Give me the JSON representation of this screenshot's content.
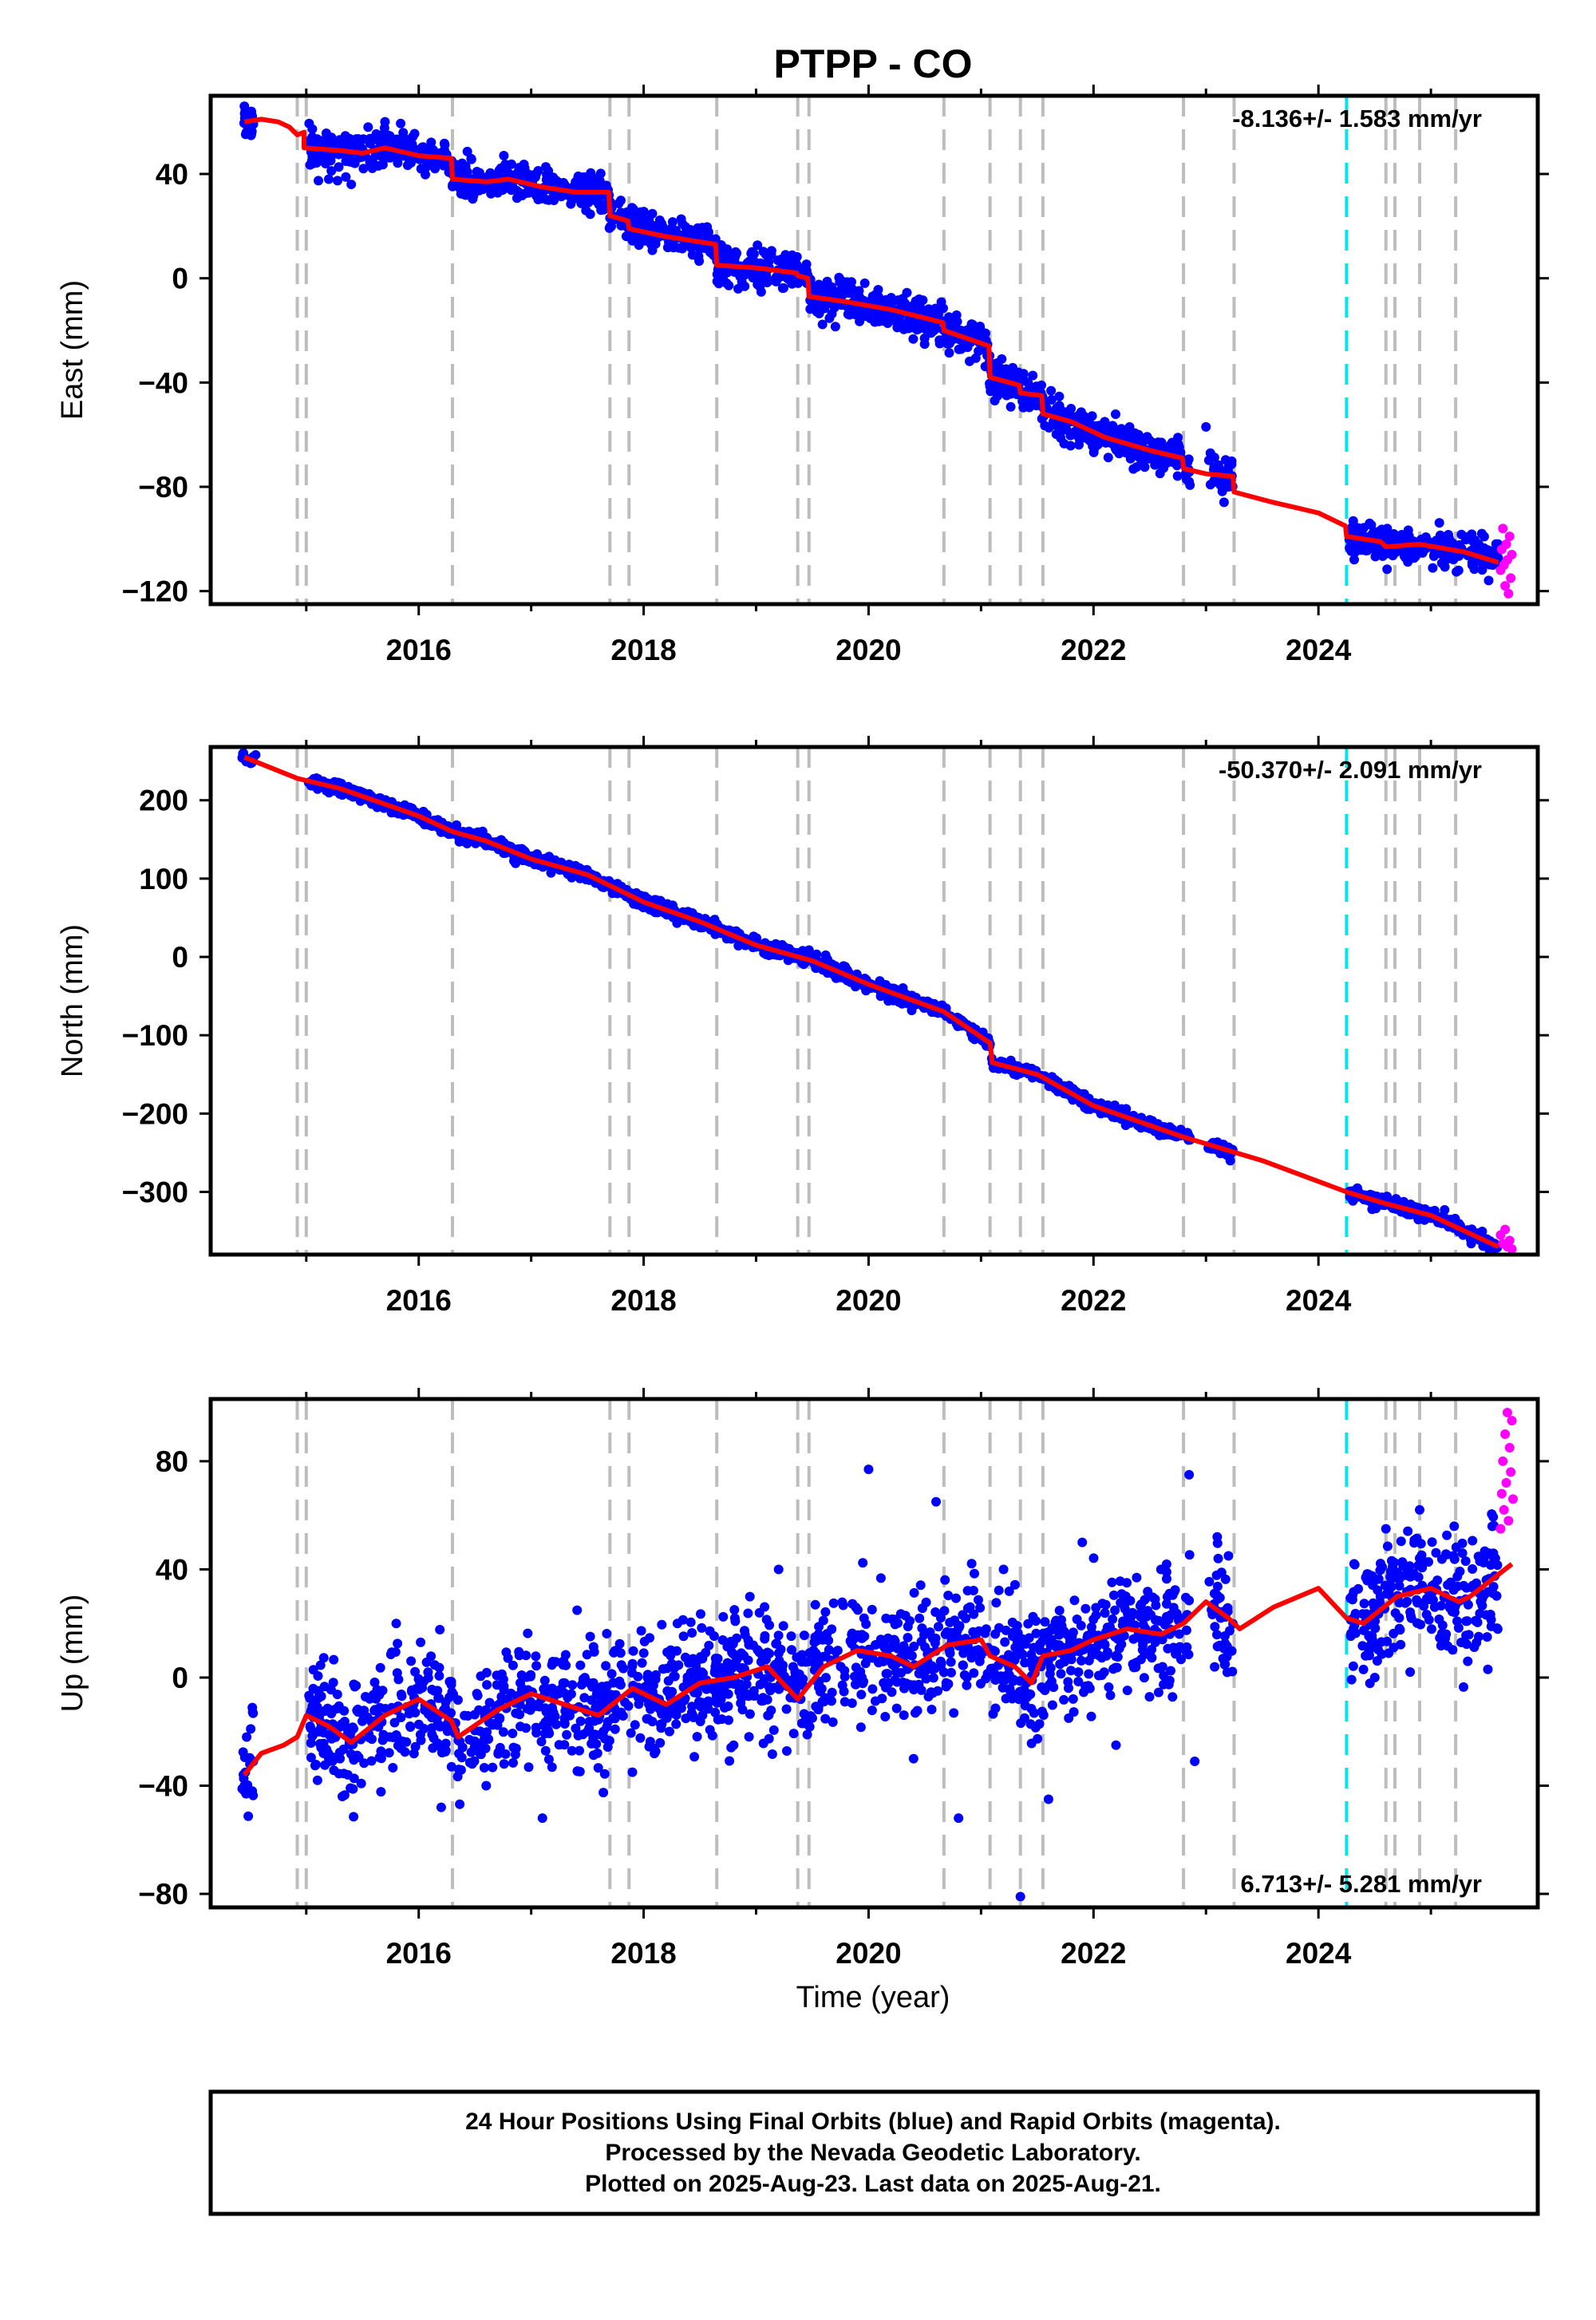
{
  "title": "PTPP - CO",
  "colors": {
    "final_orbits": "#0000ff",
    "rapid_orbits": "#ff00ff",
    "model": "#ff0000",
    "event_lines": "#bdbdbd",
    "equipment_change": "#00e5ee"
  },
  "xaxis": {
    "label": "Time (year)",
    "range": [
      2014.15,
      2025.95
    ],
    "ticks": [
      2016,
      2018,
      2020,
      2022,
      2024
    ],
    "minor_ticks": [
      2015,
      2017,
      2019,
      2021,
      2023,
      2025
    ]
  },
  "event_lines": [
    2014.92,
    2015.0,
    2016.3,
    2017.7,
    2017.87,
    2018.65,
    2019.37,
    2019.47,
    2020.67,
    2021.08,
    2021.35,
    2021.55,
    2022.8,
    2023.25,
    2024.6,
    2024.68,
    2024.9,
    2025.22
  ],
  "equipment_change": 2024.25,
  "chart_data": [
    {
      "type": "scatter",
      "component": "East",
      "ylabel": "East (mm)",
      "ylim": [
        -125,
        70
      ],
      "yticks": [
        -120,
        -80,
        -40,
        0,
        40
      ],
      "rate": "-8.136+/- 1.583 mm/yr",
      "scatter_sd": 3.5,
      "model_x": [
        2014.45,
        2014.6,
        2014.75,
        2014.85,
        2014.92,
        2014.98,
        2014.98,
        2015.3,
        2015.5,
        2015.7,
        2016.0,
        2016.29,
        2016.3,
        2016.6,
        2016.8,
        2017.1,
        2017.4,
        2017.69,
        2017.7,
        2017.86,
        2017.87,
        2018.2,
        2018.64,
        2018.65,
        2019.0,
        2019.36,
        2019.37,
        2019.46,
        2019.47,
        2019.8,
        2020.2,
        2020.66,
        2020.67,
        2021.07,
        2021.08,
        2021.34,
        2021.35,
        2021.54,
        2021.55,
        2021.8,
        2022.1,
        2022.5,
        2022.79,
        2022.8,
        2023.0,
        2023.24,
        2023.25,
        2023.6,
        2023.8,
        2024.0,
        2024.24,
        2024.25,
        2024.55,
        2024.6,
        2024.9,
        2025.3,
        2025.6
      ],
      "model_y": [
        60,
        61,
        60,
        58,
        55,
        56,
        50,
        49,
        48,
        50,
        47,
        46,
        38,
        37,
        38,
        35,
        33,
        33,
        24,
        22,
        19,
        16,
        13,
        5,
        4,
        2,
        1,
        0,
        -7,
        -9,
        -12,
        -17,
        -20,
        -26,
        -38,
        -41,
        -44,
        -45,
        -52,
        -55,
        -61,
        -66,
        -69,
        -73,
        -75,
        -76,
        -82,
        -86,
        -88,
        -90,
        -95,
        -99,
        -101,
        -103,
        -102,
        -105,
        -109
      ],
      "points_x": [
        2014.45,
        2014.5,
        2014.52,
        2015.05,
        2015.2,
        2015.4,
        2015.55,
        2015.7,
        2015.9,
        2016.1,
        2016.4,
        2016.8,
        2017.2,
        2017.6,
        2017.9,
        2018.3,
        2018.7,
        2019.0,
        2019.3,
        2019.6,
        2020.0,
        2020.4,
        2020.7,
        2020.9,
        2021.2,
        2021.5,
        2021.8,
        2022.1,
        2022.4,
        2022.7,
        2022.85,
        2023.0,
        2023.2,
        2024.3,
        2024.5,
        2024.8,
        2025.1,
        2025.4,
        2025.55
      ],
      "points_y": [
        66,
        57,
        62,
        45,
        38,
        36,
        58,
        60,
        52,
        48,
        40,
        37,
        35,
        31,
        22,
        17,
        12,
        6,
        2,
        -3,
        -11,
        -14,
        -18,
        -23,
        -36,
        -43,
        -50,
        -55,
        -60,
        -63,
        -78,
        -57,
        -80,
        -104,
        -102,
        -104,
        -106,
        -107,
        -110
      ],
      "rapid_x": [
        2025.62,
        2025.63,
        2025.64,
        2025.65,
        2025.66,
        2025.67,
        2025.68,
        2025.69,
        2025.7,
        2025.71,
        2025.72
      ],
      "rapid_y": [
        -112,
        -104,
        -96,
        -110,
        -118,
        -102,
        -108,
        -121,
        -99,
        -115,
        -106
      ]
    },
    {
      "type": "scatter",
      "component": "North",
      "ylabel": "North (mm)",
      "ylim": [
        -380,
        268
      ],
      "yticks": [
        -300,
        -200,
        -100,
        0,
        100,
        200
      ],
      "rate": "-50.370+/- 2.091 mm/yr",
      "scatter_sd": 4,
      "model_x": [
        2014.45,
        2014.92,
        2015.3,
        2016.0,
        2016.3,
        2016.6,
        2017.0,
        2017.5,
        2018.0,
        2018.5,
        2019.0,
        2019.5,
        2020.0,
        2020.67,
        2021.08,
        2021.1,
        2021.5,
        2022.0,
        2022.8,
        2023.5,
        2024.25,
        2024.6,
        2025.0,
        2025.6
      ],
      "model_y": [
        255,
        228,
        215,
        180,
        160,
        148,
        125,
        105,
        70,
        45,
        15,
        -5,
        -35,
        -70,
        -110,
        -135,
        -150,
        -190,
        -230,
        -260,
        -300,
        -315,
        -330,
        -370
      ],
      "points_x": [
        2014.45,
        2014.55,
        2015.5,
        2016.2,
        2017.0,
        2017.8,
        2018.6,
        2019.4,
        2020.2,
        2020.9,
        2021.3,
        2021.9,
        2022.5,
        2023.2,
        2024.4,
        2025.0,
        2025.5
      ],
      "points_y": [
        255,
        258,
        210,
        168,
        125,
        85,
        42,
        -5,
        -48,
        -92,
        -143,
        -175,
        -208,
        -243,
        -308,
        -330,
        -362
      ],
      "rapid_x": [
        2025.62,
        2025.64,
        2025.66,
        2025.68,
        2025.7,
        2025.72
      ],
      "rapid_y": [
        -355,
        -366,
        -348,
        -370,
        -362,
        -373
      ]
    },
    {
      "type": "scatter",
      "component": "Up",
      "ylabel": "Up (mm)",
      "ylim": [
        -85,
        103
      ],
      "yticks": [
        -80,
        -40,
        0,
        40,
        80
      ],
      "rate": "6.713+/- 5.281 mm/yr",
      "scatter_sd": 11,
      "model_x": [
        2014.45,
        2014.6,
        2014.8,
        2014.92,
        2015.0,
        2015.2,
        2015.4,
        2015.7,
        2016.0,
        2016.29,
        2016.35,
        2016.7,
        2017.0,
        2017.3,
        2017.6,
        2017.9,
        2018.2,
        2018.5,
        2018.8,
        2019.1,
        2019.37,
        2019.6,
        2019.9,
        2020.2,
        2020.4,
        2020.7,
        2021.0,
        2021.08,
        2021.3,
        2021.45,
        2021.55,
        2021.8,
        2022.0,
        2022.3,
        2022.6,
        2022.8,
        2023.0,
        2023.2,
        2023.3,
        2023.6,
        2024.0,
        2024.25,
        2024.4,
        2024.7,
        2025.0,
        2025.25,
        2025.35,
        2025.72
      ],
      "model_y": [
        -36,
        -28,
        -25,
        -22,
        -14,
        -18,
        -24,
        -14,
        -8,
        -16,
        -22,
        -12,
        -6,
        -10,
        -14,
        -4,
        -10,
        -2,
        0,
        4,
        -8,
        4,
        10,
        8,
        4,
        12,
        14,
        8,
        4,
        -2,
        8,
        10,
        14,
        18,
        16,
        20,
        28,
        22,
        18,
        26,
        33,
        22,
        20,
        30,
        33,
        28,
        30,
        42
      ],
      "points_x": [
        2014.45,
        2014.47,
        2014.52,
        2015.1,
        2015.3,
        2015.8,
        2016.2,
        2016.6,
        2017.1,
        2017.5,
        2017.9,
        2018.3,
        2018.8,
        2019.2,
        2019.5,
        2020.0,
        2020.4,
        2020.6,
        2020.8,
        2021.2,
        2021.35,
        2021.6,
        2021.9,
        2022.2,
        2022.6,
        2022.85,
        2022.9,
        2023.1,
        2023.2,
        2024.3,
        2024.6,
        2024.9,
        2025.2,
        2025.5
      ],
      "points_y": [
        -40,
        -22,
        -42,
        -38,
        -30,
        20,
        -48,
        -40,
        -52,
        -20,
        -35,
        20,
        -25,
        40,
        -15,
        77,
        -30,
        65,
        -52,
        40,
        -81,
        -45,
        50,
        -25,
        40,
        75,
        -31,
        52,
        45,
        30,
        55,
        62,
        45,
        15
      ],
      "rapid_x": [
        2025.62,
        2025.63,
        2025.64,
        2025.65,
        2025.66,
        2025.67,
        2025.68,
        2025.69,
        2025.7,
        2025.71,
        2025.72,
        2025.73
      ],
      "rapid_y": [
        55,
        68,
        80,
        62,
        90,
        72,
        98,
        58,
        85,
        76,
        95,
        66
      ]
    }
  ],
  "footer": {
    "line1": "24 Hour Positions Using Final Orbits (blue) and Rapid Orbits (magenta).",
    "line2": "Processed by the Nevada Geodetic Laboratory.",
    "line3": "Plotted on 2025-Aug-23. Last data on 2025-Aug-21."
  }
}
